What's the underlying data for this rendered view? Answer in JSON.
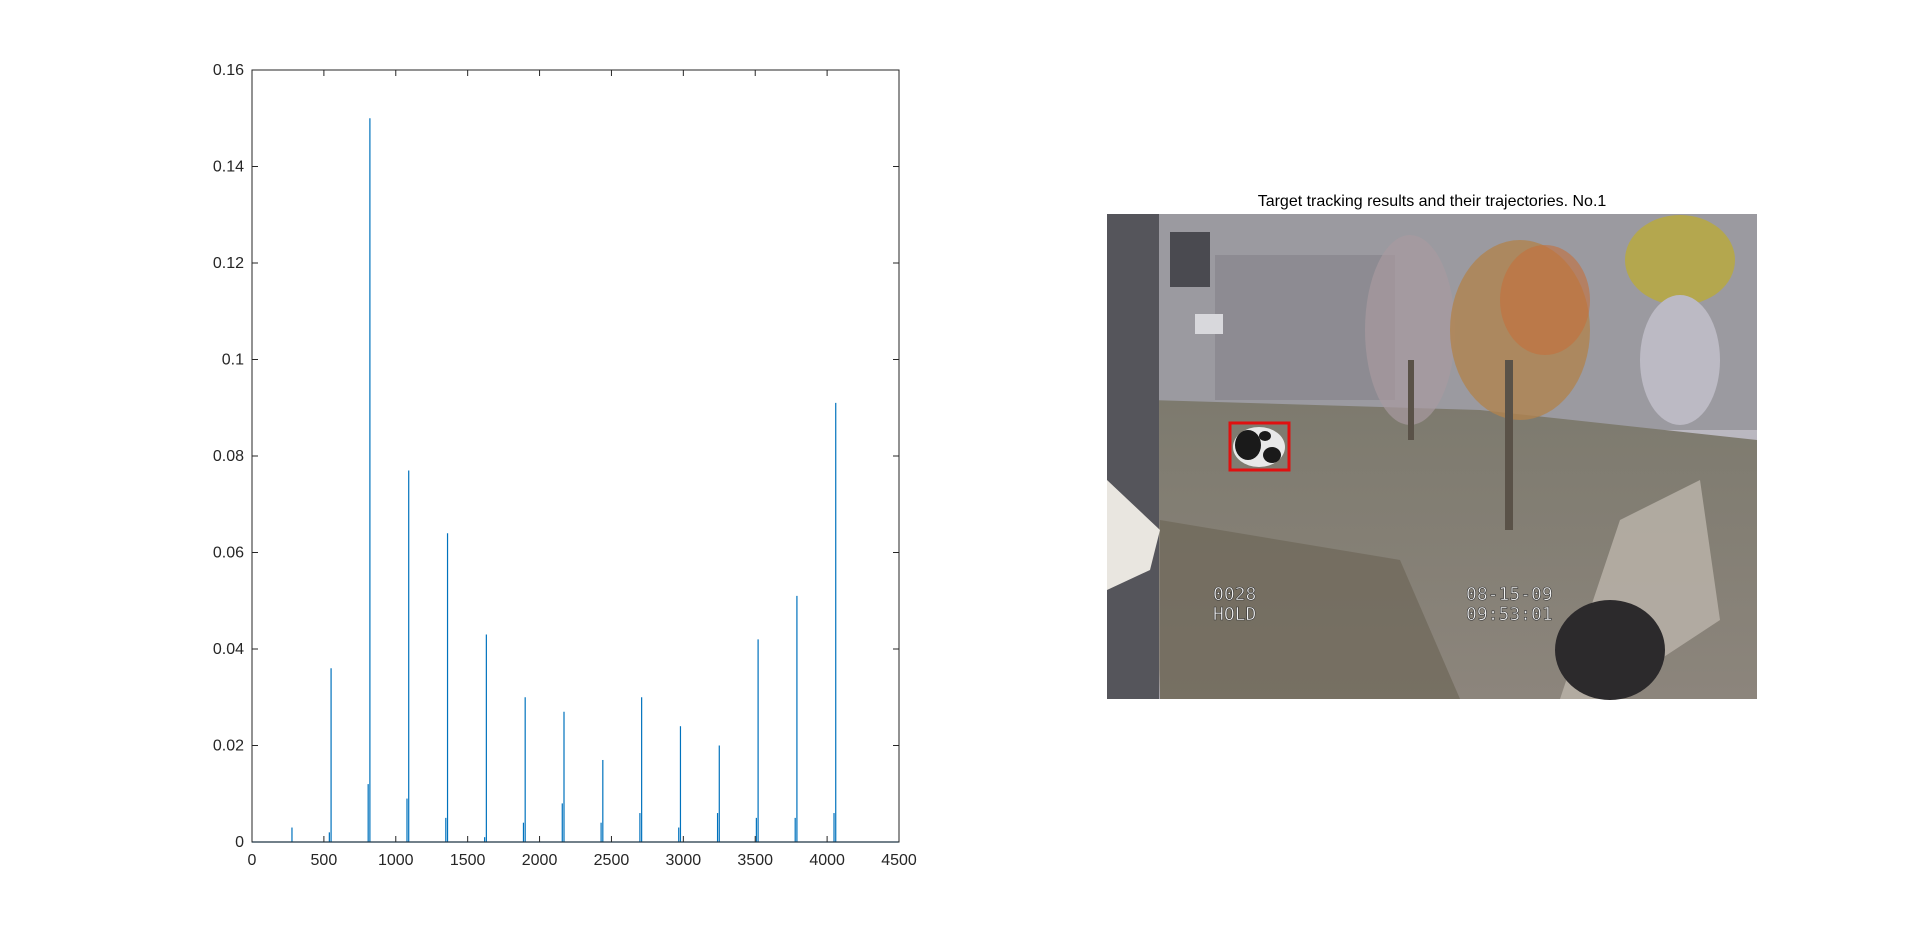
{
  "chart_data": [
    {
      "type": "stem",
      "title": "",
      "xlabel": "",
      "ylabel": "",
      "xlim": [
        0,
        4500
      ],
      "ylim": [
        0,
        0.16
      ],
      "xticks": [
        "0",
        "500",
        "1000",
        "1500",
        "2000",
        "2500",
        "3000",
        "3500",
        "4000",
        "4500"
      ],
      "yticks": [
        "0",
        "0.02",
        "0.04",
        "0.06",
        "0.08",
        "0.1",
        "0.12",
        "0.14",
        "0.16"
      ],
      "grid": false,
      "line_color": "#0072BD",
      "x": [
        278,
        538,
        550,
        808,
        820,
        1078,
        1090,
        1348,
        1360,
        1618,
        1630,
        1888,
        1900,
        2158,
        2170,
        2428,
        2440,
        2698,
        2710,
        2968,
        2980,
        3238,
        3250,
        3508,
        3520,
        3778,
        3790,
        4048,
        4060
      ],
      "values": [
        0.003,
        0.002,
        0.036,
        0.012,
        0.15,
        0.009,
        0.077,
        0.005,
        0.064,
        0.001,
        0.043,
        0.004,
        0.03,
        0.008,
        0.027,
        0.004,
        0.017,
        0.006,
        0.03,
        0.003,
        0.024,
        0.006,
        0.02,
        0.005,
        0.042,
        0.005,
        0.051,
        0.006,
        0.091
      ]
    }
  ],
  "frame": {
    "title": "Target tracking results and their trajectories. No.1",
    "overlay_left": [
      "0028",
      "HOLD"
    ],
    "overlay_right": [
      "08-15-09",
      "09:53:01"
    ],
    "box_color": "#e01010"
  }
}
